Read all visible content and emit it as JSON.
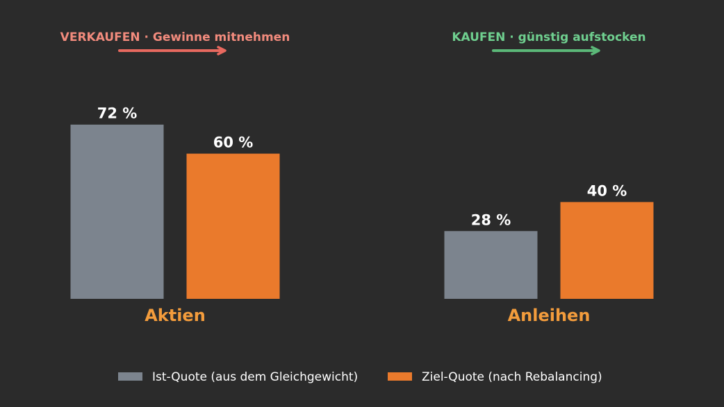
{
  "chart_data": {
    "type": "bar",
    "categories": [
      "Aktien",
      "Anleihen"
    ],
    "series": [
      {
        "name": "Ist-Quote (aus dem Gleichgewicht)",
        "values": [
          72,
          28
        ],
        "color": "#7c848e"
      },
      {
        "name": "Ziel-Quote (nach Rebalancing)",
        "values": [
          60,
          40
        ],
        "color": "#ea7a2c"
      }
    ],
    "value_suffix": " %",
    "ylim": [
      0,
      100
    ],
    "grid": false,
    "legend_position": "bottom",
    "category_label_color": "#f39c3c",
    "annotations": [
      {
        "category": "Aktien",
        "action": "VERKAUFEN",
        "separator": "·",
        "detail": "Gewinne mitnehmen",
        "color": "#f28b7d",
        "arrow_color": "#e8695f"
      },
      {
        "category": "Anleihen",
        "action": "KAUFEN",
        "separator": "·",
        "detail": "günstig aufstocken",
        "color": "#6fcf8f",
        "arrow_color": "#5bb878"
      }
    ]
  },
  "colors": {
    "background": "#2b2b2b",
    "value_label": "#ffffff",
    "legend_text": "#ffffff"
  }
}
